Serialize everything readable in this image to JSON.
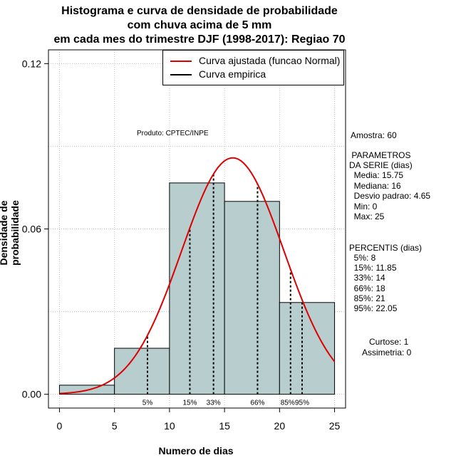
{
  "title": {
    "line1": "Histograma e curva de densidade de probabilidade",
    "line2": "com chuva acima de 5 mm",
    "line3": "em cada mes do trimestre DJF (1998-2017): Regiao 70"
  },
  "source_label": "Produto: CPTEC/INPE",
  "legend": {
    "fitted": "Curva ajustada (funcao Normal)",
    "empirical": "Curva empirica"
  },
  "side_panel": {
    "sample": "Amostra: 60",
    "params_title1": " PARAMETROS",
    "params_title2": "DA SERIE (dias)",
    "params": [
      "  Media: 15.75",
      "  Mediana: 16",
      "  Desvio padrao: 4.65",
      "  Min: 0",
      "  Max: 25"
    ],
    "percentis_title": "PERCENTIS (dias)",
    "percentis": [
      "  5%: 8",
      "  15%: 11.85",
      "  33%: 14",
      "  66%: 18",
      "  85%: 21",
      "  95%: 22.05"
    ],
    "kurtosis": "Curtose: 1",
    "skewness": "Assimetria: 0"
  },
  "colors": {
    "bar_fill": "#b8cece",
    "fitted_curve": "#dd0000",
    "grid": "#c0c0c0"
  },
  "chart_data": {
    "type": "bar",
    "title": "Histograma e curva de densidade de probabilidade com chuva acima de 5 mm em cada mes do trimestre DJF (1998-2017): Regiao 70",
    "xlabel": "Numero de dias",
    "ylabel": "Densidade de probabilidade",
    "xlim": [
      -1,
      26
    ],
    "ylim": [
      -0.005,
      0.125
    ],
    "x_ticks": [
      0,
      5,
      10,
      15,
      20,
      25
    ],
    "y_ticks": [
      0.0,
      0.06,
      0.12
    ],
    "y_tick_labels": [
      "0.00",
      "0.06",
      "0.12"
    ],
    "grid": true,
    "bins": [
      {
        "start": 0,
        "end": 5,
        "density": 0.0033
      },
      {
        "start": 5,
        "end": 10,
        "density": 0.0167
      },
      {
        "start": 10,
        "end": 15,
        "density": 0.0767
      },
      {
        "start": 15,
        "end": 20,
        "density": 0.07
      },
      {
        "start": 20,
        "end": 25,
        "density": 0.0333
      }
    ],
    "fitted_normal": {
      "mean": 15.75,
      "sd": 4.65
    },
    "percentiles": [
      {
        "label": "5%",
        "value": 8
      },
      {
        "label": "15%",
        "value": 11.85
      },
      {
        "label": "33%",
        "value": 14
      },
      {
        "label": "66%",
        "value": 18
      },
      {
        "label": "85%",
        "value": 21
      },
      {
        "label": "95%",
        "value": 22.05
      }
    ]
  }
}
